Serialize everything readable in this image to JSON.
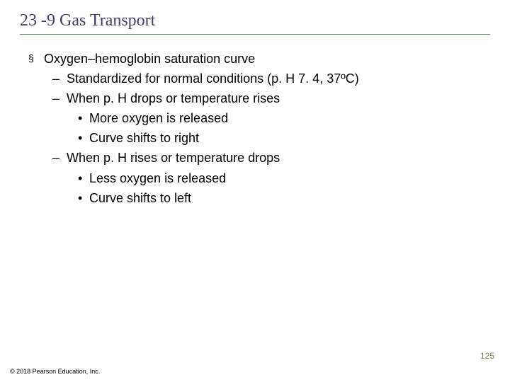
{
  "title": "23 -9 Gas Transport",
  "main_bullet": "Oxygen–hemoglobin saturation curve",
  "sub1": "Standardized for normal conditions (p. H 7. 4, 37ºC)",
  "sub2": "When p. H drops or temperature rises",
  "sub2_dot1": "More oxygen is released",
  "sub2_dot2": "Curve shifts to right",
  "sub3": "When p. H rises or temperature drops",
  "sub3_dot1": "Less oxygen is released",
  "sub3_dot2": "Curve shifts to left",
  "page_number": "125",
  "copyright": "© 2018 Pearson Education, Inc.",
  "colors": {
    "title_color": "#4a3a6a",
    "underline_color": "#5a8a5a",
    "text_color": "#000000",
    "page_num_color": "#8a7a55",
    "background": "#ffffff"
  },
  "fonts": {
    "title_family": "Times New Roman, serif",
    "title_size_pt": 18,
    "body_family": "Arial, sans-serif",
    "body_size_pt": 14
  }
}
